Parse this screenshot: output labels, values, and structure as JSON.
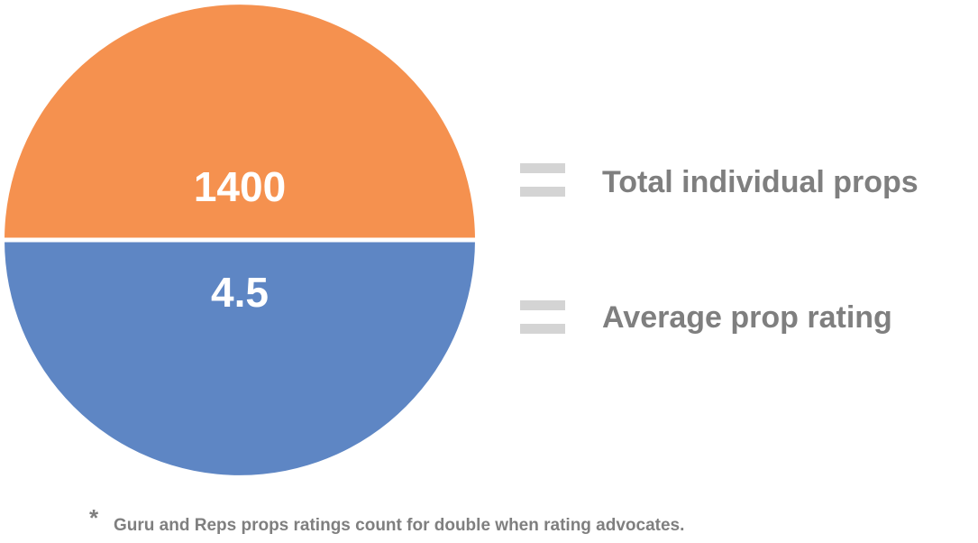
{
  "items": [
    {
      "value": 1400,
      "label": "Total individual props",
      "color": "#f5914f"
    },
    {
      "value": 4.5,
      "label": "Average prop rating",
      "color": "#5e86c4"
    }
  ],
  "footnote": {
    "marker": "*",
    "text": "Guru and Reps props ratings count for double when rating advocates."
  }
}
